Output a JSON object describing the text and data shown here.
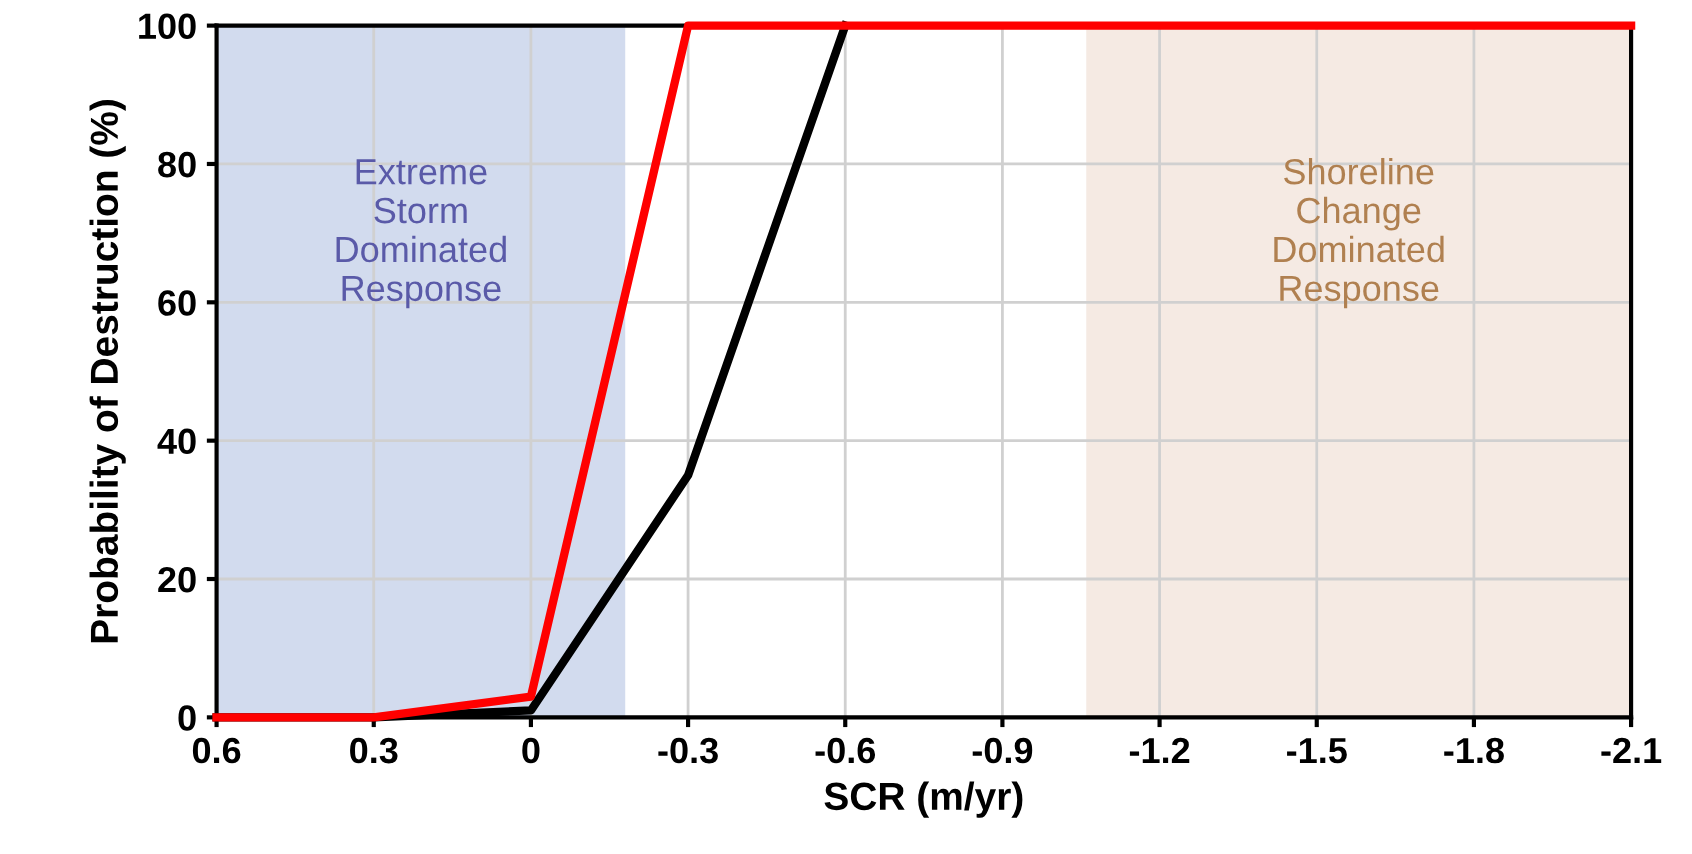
{
  "chart_data": {
    "type": "line",
    "xlabel": "SCR (m/yr)",
    "ylabel": "Probability of Destruction (%)",
    "xlim": [
      0.6,
      -2.1
    ],
    "xticks": [
      0.6,
      0.3,
      0,
      {
        "value": -0.3,
        "label": "-0.3"
      },
      {
        "value": -0.6,
        "label": "-0.6"
      },
      {
        "value": -0.9,
        "label": "-0.9"
      },
      {
        "value": -1.2,
        "label": "-1.2"
      },
      {
        "value": -1.5,
        "label": "-1.5"
      },
      {
        "value": -1.8,
        "label": "-1.8"
      },
      {
        "value": -2.1,
        "label": "-2.1"
      }
    ],
    "ylim": [
      0,
      100
    ],
    "yticks": [
      0,
      20,
      40,
      60,
      80,
      100
    ],
    "grid": true,
    "marker": "none",
    "line_style": "solid",
    "series": [
      {
        "color": "#000000",
        "x": [
          0.6,
          0.3,
          0,
          -0.3,
          -0.6
        ],
        "values": [
          0,
          0,
          1,
          35,
          100
        ]
      },
      {
        "color": "#ff0000",
        "x": [
          0.6,
          0.3,
          0,
          -0.3,
          -2.1
        ],
        "values": [
          0,
          0,
          3,
          100,
          100
        ]
      }
    ],
    "bands": [
      {
        "axis": "x",
        "from": 0.6,
        "to": -0.18,
        "label": "Extreme\nStorm\nDominated\nResponse",
        "color": "#c3cfe8"
      },
      {
        "axis": "x",
        "from": -1.06,
        "to": -2.1,
        "label": "Shoreline\nChange\nDominated\nResponse",
        "color": "#f1e3da"
      }
    ]
  }
}
